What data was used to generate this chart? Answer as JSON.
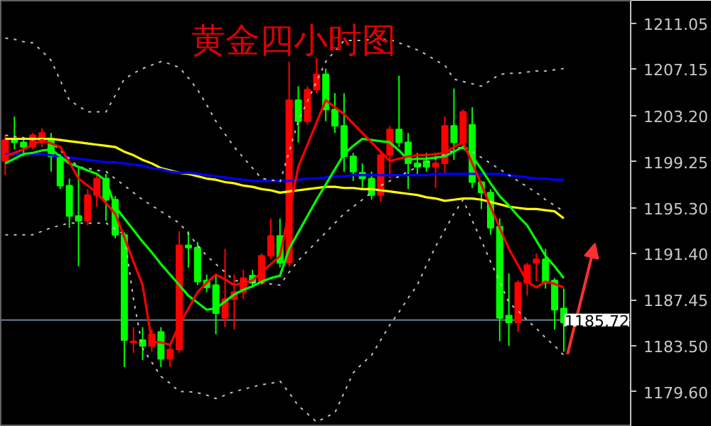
{
  "chart_data": {
    "type": "candlestick",
    "title": "黄金四小时图",
    "categories": [
      null,
      null,
      null,
      null,
      null,
      null,
      null,
      null,
      null,
      null,
      null,
      null,
      null,
      null,
      null,
      null,
      null,
      null,
      null,
      null,
      null,
      null,
      null,
      null,
      null,
      null,
      null,
      null,
      null,
      null,
      null,
      null,
      null,
      null,
      null,
      null,
      null,
      null,
      null,
      null,
      null,
      null,
      null,
      null,
      null,
      null,
      null,
      null,
      null,
      null,
      null,
      null,
      null,
      null,
      null,
      null,
      null,
      null,
      null,
      null,
      null,
      null
    ],
    "ohlc": [
      [
        1199.3,
        1201.5,
        1198.1,
        1201.1
      ],
      [
        1201.2,
        1203.1,
        1200.3,
        1200.9
      ],
      [
        1200.9,
        1201.2,
        1199.7,
        1200.5
      ],
      [
        1200.5,
        1201.7,
        1200.3,
        1201.5
      ],
      [
        1200.9,
        1202.1,
        1200.5,
        1201.7
      ],
      [
        1201.2,
        1201.7,
        1198.4,
        1199.7
      ],
      [
        1199.7,
        1199.9,
        1196.9,
        1197.2
      ],
      [
        1197.2,
        1197.8,
        1193.6,
        1194.6
      ],
      [
        1194.6,
        1198.8,
        1190.3,
        1194.2
      ],
      [
        1194.2,
        1196.9,
        1193.8,
        1196.4
      ],
      [
        1196.4,
        1198.2,
        1195.4,
        1197.8
      ],
      [
        1197.8,
        1198.2,
        1194.2,
        1196.0
      ],
      [
        1196.0,
        1196.3,
        1192.7,
        1193.0
      ],
      [
        1193.0,
        1193.2,
        1181.7,
        1184.0
      ],
      [
        1183.8,
        1185.1,
        1182.9,
        1183.9
      ],
      [
        1184.0,
        1185.1,
        1182.3,
        1183.5
      ],
      [
        1183.5,
        1184.9,
        1183.0,
        1184.5
      ],
      [
        1184.7,
        1185.1,
        1181.7,
        1182.4
      ],
      [
        1182.4,
        1183.5,
        1181.7,
        1183.2
      ],
      [
        1183.2,
        1193.3,
        1182.9,
        1192.1
      ],
      [
        1192.1,
        1193.3,
        1190.2,
        1191.9
      ],
      [
        1191.9,
        1192.4,
        1188.7,
        1189.0
      ],
      [
        1189.1,
        1189.6,
        1188.1,
        1188.5
      ],
      [
        1188.7,
        1189.6,
        1184.5,
        1186.3
      ],
      [
        1185.9,
        1191.8,
        1185.1,
        1187.5
      ],
      [
        1187.5,
        1189.6,
        1184.9,
        1188.1
      ],
      [
        1188.1,
        1190.0,
        1187.5,
        1189.3
      ],
      [
        1189.5,
        1190.0,
        1188.5,
        1188.9
      ],
      [
        1188.9,
        1191.4,
        1188.7,
        1191.2
      ],
      [
        1191.2,
        1194.4,
        1190.9,
        1192.9
      ],
      [
        1192.9,
        1194.4,
        1190.2,
        1190.6
      ],
      [
        1190.6,
        1207.8,
        1190.3,
        1204.5
      ],
      [
        1204.5,
        1205.7,
        1200.9,
        1202.7
      ],
      [
        1202.7,
        1205.7,
        1202.4,
        1205.4
      ],
      [
        1205.4,
        1208.1,
        1205.1,
        1206.7
      ],
      [
        1206.7,
        1207.2,
        1202.7,
        1203.7
      ],
      [
        1203.7,
        1205.1,
        1201.7,
        1202.3
      ],
      [
        1202.3,
        1205.1,
        1198.4,
        1199.7
      ],
      [
        1199.7,
        1200.0,
        1197.6,
        1198.4
      ],
      [
        1198.3,
        1199.1,
        1197.0,
        1197.8
      ],
      [
        1197.8,
        1198.4,
        1196.0,
        1196.4
      ],
      [
        1196.4,
        1200.0,
        1195.8,
        1199.8
      ],
      [
        1199.8,
        1202.3,
        1197.8,
        1202.0
      ],
      [
        1202.0,
        1206.6,
        1200.5,
        1200.9
      ],
      [
        1200.9,
        1201.7,
        1196.9,
        1199.1
      ],
      [
        1199.1,
        1200.0,
        1198.2,
        1198.8
      ],
      [
        1199.3,
        1200.0,
        1198.4,
        1198.8
      ],
      [
        1198.8,
        1200.0,
        1197.0,
        1199.1
      ],
      [
        1199.1,
        1203.1,
        1198.2,
        1202.3
      ],
      [
        1202.3,
        1205.5,
        1199.4,
        1200.9
      ],
      [
        1200.9,
        1203.7,
        1200.5,
        1203.5
      ],
      [
        1202.4,
        1203.9,
        1197.0,
        1197.5
      ],
      [
        1197.5,
        1197.6,
        1195.2,
        1196.6
      ],
      [
        1196.6,
        1196.9,
        1193.0,
        1193.6
      ],
      [
        1193.7,
        1194.4,
        1183.9,
        1185.9
      ],
      [
        1186.1,
        1189.7,
        1183.5,
        1185.5
      ],
      [
        1185.5,
        1189.1,
        1184.7,
        1188.9
      ],
      [
        1188.9,
        1190.6,
        1187.8,
        1190.4
      ],
      [
        1190.6,
        1191.4,
        1189.0,
        1190.9
      ],
      [
        1190.9,
        1191.8,
        1188.4,
        1188.9
      ],
      [
        1189.1,
        1189.3,
        1184.9,
        1186.6
      ],
      [
        1186.7,
        1188.4,
        1183.0,
        1185.5
      ]
    ],
    "colors": [
      "#ff0000",
      "#00ff00",
      "#00ff00",
      "#ff0000",
      "#ff0000",
      "#00ff00",
      "#00ff00",
      "#00ff00",
      "#00ff00",
      "#ff0000",
      "#ff0000",
      "#00ff00",
      "#00ff00",
      "#00ff00",
      "#ff0000",
      "#00ff00",
      "#ff0000",
      "#00ff00",
      "#ff0000",
      "#ff0000",
      "#00ff00",
      "#00ff00",
      "#00ff00",
      "#00ff00",
      "#ff0000",
      "#ff0000",
      "#ff0000",
      "#00ff00",
      "#ff0000",
      "#ff0000",
      "#00ff00",
      "#ff0000",
      "#00ff00",
      "#ff0000",
      "#ff0000",
      "#00ff00",
      "#00ff00",
      "#00ff00",
      "#00ff00",
      "#00ff00",
      "#00ff00",
      "#ff0000",
      "#ff0000",
      "#00ff00",
      "#00ff00",
      "#00ff00",
      "#00ff00",
      "#ff0000",
      "#ff0000",
      "#00ff00",
      "#ff0000",
      "#00ff00",
      "#00ff00",
      "#00ff00",
      "#00ff00",
      "#00ff00",
      "#ff0000",
      "#ff0000",
      "#ff0000",
      "#00ff00",
      "#00ff00",
      "#00ff00"
    ],
    "series": [
      {
        "type": "line",
        "color": "#ffff00",
        "line_style": "solid",
        "values": [
          1201.2,
          1201.2,
          1201.2,
          1201.2,
          1201.2,
          1201.2,
          1201.1,
          1201.0,
          1200.9,
          1200.8,
          1200.7,
          1200.6,
          1200.5,
          1200.1,
          1199.8,
          1199.4,
          1199.1,
          1198.7,
          1198.5,
          1198.3,
          1198.2,
          1198.0,
          1197.8,
          1197.7,
          1197.5,
          1197.4,
          1197.2,
          1197.1,
          1196.9,
          1196.8,
          1196.6,
          1196.7,
          1196.8,
          1196.9,
          1197.0,
          1197.1,
          1197.1,
          1197.0,
          1197.0,
          1196.9,
          1196.9,
          1196.8,
          1196.7,
          1196.6,
          1196.5,
          1196.4,
          1196.2,
          1196.1,
          1195.9,
          1196.0,
          1196.1,
          1196.1,
          1196.0,
          1195.8,
          1195.6,
          1195.4,
          1195.3,
          1195.2,
          1195.2,
          1195.1,
          1195.0,
          1194.4
        ]
      },
      {
        "type": "line",
        "color": "#0000ff",
        "line_style": "solid",
        "values": [
          1199.9,
          1199.9,
          1199.9,
          1199.9,
          1199.9,
          1199.8,
          1199.7,
          1199.6,
          1199.5,
          1199.4,
          1199.3,
          1199.2,
          1199.2,
          1199.1,
          1199.0,
          1198.9,
          1198.7,
          1198.6,
          1198.4,
          1198.3,
          1198.3,
          1198.2,
          1198.1,
          1198.0,
          1197.9,
          1197.8,
          1197.7,
          1197.6,
          1197.6,
          1197.6,
          1197.6,
          1197.6,
          1197.7,
          1197.8,
          1197.8,
          1197.9,
          1198.0,
          1198.0,
          1198.1,
          1198.1,
          1198.1,
          1198.1,
          1198.1,
          1198.1,
          1198.1,
          1198.1,
          1198.1,
          1198.2,
          1198.2,
          1198.2,
          1198.2,
          1198.2,
          1198.2,
          1198.2,
          1198.2,
          1198.1,
          1198.0,
          1197.9,
          1197.8,
          1197.8,
          1197.7,
          1197.7
        ]
      },
      {
        "type": "line",
        "color": "#c0c0c0",
        "line_style": "dotted",
        "values": [
          1209.8,
          1209.7,
          1209.5,
          1209.4,
          1208.7,
          1207.9,
          1206.2,
          1204.5,
          1204.0,
          1203.5,
          1203.5,
          1203.5,
          1204.9,
          1206.3,
          1206.8,
          1207.2,
          1207.5,
          1207.8,
          1207.6,
          1207.3,
          1206.4,
          1205.4,
          1204.1,
          1202.7,
          1201.6,
          1200.5,
          1199.6,
          1198.7,
          1197.8,
          1197.7,
          1197.5,
          1200.1,
          1202.7,
          1204.4,
          1206.1,
          1207.8,
          1208.7,
          1209.6,
          1209.6,
          1209.6,
          1209.7,
          1209.7,
          1209.7,
          1209.4,
          1209.1,
          1208.8,
          1208.4,
          1207.9,
          1207.5,
          1206.3,
          1206.1,
          1205.9,
          1205.7,
          1206.2,
          1206.7,
          1206.8,
          1206.8,
          1206.9,
          1207.0,
          1207.0,
          1207.1,
          1207.2
        ]
      },
      {
        "type": "line",
        "color": "#c0c0c0",
        "line_style": "dotted",
        "values": [
          1201.5,
          1201.4,
          1201.3,
          1201.1,
          1201.0,
          1200.9,
          1200.2,
          1199.5,
          1198.8,
          1198.7,
          1198.5,
          1198.4,
          1197.8,
          1197.2,
          1196.6,
          1196.0,
          1195.5,
          1195.0,
          1194.5,
          1194.0,
          1193.1,
          1192.1,
          1191.2,
          1190.5,
          1189.8,
          1189.1,
          1189.0,
          1188.9,
          1188.9,
          1188.8,
          1188.7,
          1189.8,
          1190.8,
          1191.6,
          1192.4,
          1193.2,
          1194.0,
          1194.8,
          1195.4,
          1196.0,
          1196.6,
          1197.2,
          1197.6,
          1198.0,
          1198.4,
          1198.8,
          1199.2,
          1199.5,
          1199.9,
          1200.2,
          1200.6,
          1200.1,
          1199.6,
          1199.1,
          1198.6,
          1198.1,
          1197.6,
          1197.1,
          1196.6,
          1196.0,
          1195.5,
          1195.0
        ]
      },
      {
        "type": "line",
        "color": "#c0c0c0",
        "line_style": "dotted",
        "values": [
          1193.0,
          1193.0,
          1193.0,
          1193.0,
          1193.3,
          1193.6,
          1193.8,
          1194.0,
          1194.0,
          1194.0,
          1194.0,
          1194.0,
          1193.5,
          1193.0,
          1187.5,
          1183.3,
          1182.1,
          1180.9,
          1180.3,
          1179.6,
          1179.6,
          1179.5,
          1179.3,
          1179.0,
          1179.3,
          1179.6,
          1179.8,
          1180.0,
          1180.2,
          1180.3,
          1180.5,
          1179.5,
          1178.4,
          1177.7,
          1177.0,
          1177.4,
          1177.8,
          1179.5,
          1181.2,
          1182.0,
          1182.7,
          1184.0,
          1185.3,
          1186.4,
          1187.6,
          1188.7,
          1190.4,
          1192.0,
          1193.4,
          1194.8,
          1196.0,
          1194.2,
          1192.5,
          1190.7,
          1189.0,
          1187.2,
          1186.5,
          1185.7,
          1185.0,
          1184.2,
          1183.5,
          1182.7
        ]
      },
      {
        "type": "line",
        "color": "#00ff00",
        "line_style": "solid",
        "values": [
          1199.1,
          1199.5,
          1199.9,
          1200.0,
          1200.2,
          1200.3,
          1199.7,
          1199.1,
          1198.8,
          1198.5,
          1198.2,
          1197.6,
          1195.4,
          1194.4,
          1193.4,
          1192.4,
          1191.5,
          1190.5,
          1189.6,
          1188.7,
          1187.8,
          1187.2,
          1186.6,
          1186.7,
          1187.3,
          1187.9,
          1188.3,
          1188.6,
          1189.0,
          1189.3,
          1189.5,
          1191.8,
          1193.2,
          1194.6,
          1196.0,
          1197.3,
          1198.6,
          1199.9,
          1200.6,
          1201.2,
          1201.1,
          1201.0,
          1200.9,
          1200.2,
          1199.4,
          1199.5,
          1199.5,
          1199.6,
          1199.7,
          1200.1,
          1200.5,
          1199.7,
          1198.6,
          1197.4,
          1196.3,
          1195.5,
          1194.6,
          1193.8,
          1192.5,
          1191.2,
          1190.3,
          1189.3
        ]
      },
      {
        "type": "line",
        "color": "#ff0000",
        "line_style": "solid",
        "values": [
          1199.7,
          1200.0,
          1200.3,
          1200.7,
          1201.1,
          1200.8,
          1200.5,
          1199.2,
          1197.8,
          1197.2,
          1196.6,
          1195.7,
          1194.8,
          1192.8,
          1190.7,
          1188.7,
          1183.9,
          1183.8,
          1183.6,
          1185.3,
          1186.7,
          1188.1,
          1188.9,
          1189.6,
          1189.2,
          1188.7,
          1188.9,
          1189.1,
          1189.8,
          1190.5,
          1191.2,
          1195.0,
          1198.8,
          1200.7,
          1202.6,
          1204.5,
          1203.9,
          1203.3,
          1202.5,
          1201.7,
          1200.9,
          1200.1,
          1199.3,
          1199.5,
          1199.7,
          1199.8,
          1199.8,
          1199.9,
          1200.0,
          1200.5,
          1200.9,
          1199.1,
          1197.3,
          1195.4,
          1193.6,
          1191.8,
          1190.4,
          1189.0,
          1188.5,
          1189.0,
          1188.8,
          1188.5
        ]
      }
    ],
    "ylim": [
      1176.6,
      1213.0
    ],
    "yticks": [
      {
        "value": 1211.05,
        "label": "1211.05"
      },
      {
        "value": 1207.15,
        "label": "1207.15"
      },
      {
        "value": 1203.2,
        "label": "1203.20"
      },
      {
        "value": 1199.25,
        "label": "1199.25"
      },
      {
        "value": 1195.3,
        "label": "1195.30"
      },
      {
        "value": 1191.4,
        "label": "1191.40"
      },
      {
        "value": 1187.45,
        "label": "1187.45"
      },
      {
        "value": 1183.5,
        "label": "1183.50"
      },
      {
        "value": 1179.6,
        "label": "1179.60"
      }
    ],
    "ref_lines": [
      {
        "axis": "y",
        "value": 1185.72,
        "label": "1185.72",
        "color": "#708090"
      }
    ],
    "tick_labels": "y",
    "grid": false
  }
}
